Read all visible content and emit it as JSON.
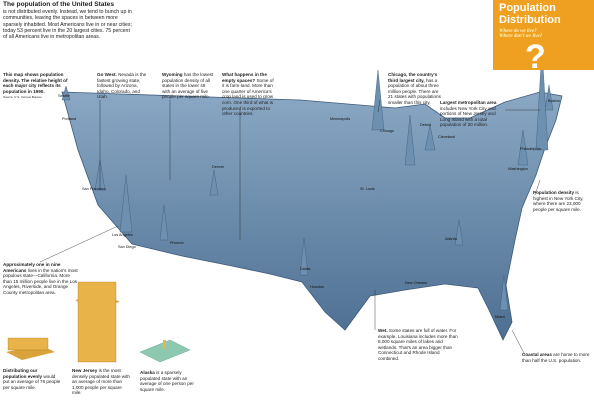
{
  "intro": {
    "title": "The population of the United States",
    "text": "is not distributed evenly. Instead, we tend to bunch up in communities, leaving the spaces in between more sparsely inhabited. Most Americans live in or near cities; today 53 percent live in the 20 largest cities. 75 percent of all Americans live in metropolitan areas."
  },
  "title_box": {
    "title": "Population Distribution",
    "subtitle": "Where do we live? Where don't we live?",
    "mark": "?"
  },
  "annotations": [
    {
      "lead": "This map shows population density. The relative height of each major city reflects its population in 1990.",
      "text": "Source: U.S. Census Bureau"
    },
    {
      "lead": "Go West.",
      "text": "Nevada is the fastest growing state, followed by Arizona, Idaho, Colorado, and Utah."
    },
    {
      "lead": "Wyoming",
      "text": "has the lowest population density of all states in the lower 48 with an average of five people per square mile."
    },
    {
      "lead": "What happens in the empty spaces?",
      "text": "Some of it is farm-land. More than one quarter of America's crop land is used to grow corn. One third of what is produced is exported to other countries."
    },
    {
      "lead": "Chicago, the country's third largest city,",
      "text": "has a population of about three million people. There are 21 states with populations smaller than this city."
    },
    {
      "lead": "Largest metropolitan area",
      "text": "includes New York City and portions of New Jersey and Long Island with a total population of 20 million."
    },
    {
      "lead": "Population density",
      "text": "is highest in New York City, where there are 23,000 people per square mile."
    },
    {
      "lead": "Approximately one in nine Americans",
      "text": "lives in the nation's most populous state—California. More than 15 million people live in the Los Angeles, Riverside, and Orange County metropolitan area."
    },
    {
      "lead": "Wet.",
      "text": "Some states are full of water. For example, Louisiana includes more than 8,000 square miles of lakes and wetlands. That's an area bigger than Connecticut and Rhode Island combined."
    },
    {
      "lead": "Coastal areas",
      "text": "are home to more than half the U.S. population."
    },
    {
      "lead": "Distributing our population evenly",
      "text": "would put an average of 76 people per square mile."
    },
    {
      "lead": "New Jersey",
      "text": "is the most densely populated state with an average of more than 1,000 people per square mile."
    },
    {
      "lead": "Alaska",
      "text": "is a sparsely populated state with an average of one person per square mile."
    }
  ],
  "cities": [
    "New York City",
    "Seattle",
    "Portland",
    "San Francisco",
    "Los Angeles",
    "San Diego",
    "Phoenix",
    "Denver",
    "Minneapolis",
    "Chicago",
    "Detroit",
    "Cleveland",
    "Boston",
    "Philadelphia",
    "Washington",
    "St. Louis",
    "Dallas",
    "Houston",
    "New Orleans",
    "Atlanta",
    "Miami"
  ]
}
